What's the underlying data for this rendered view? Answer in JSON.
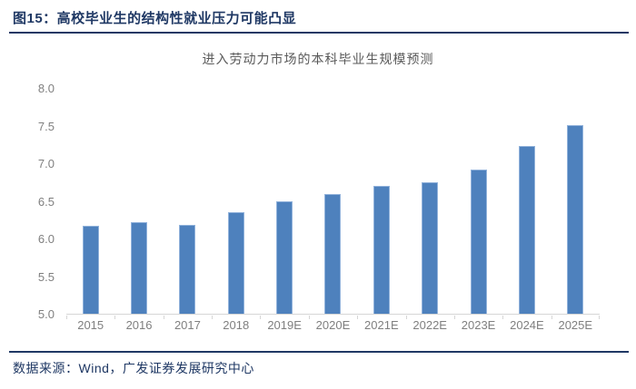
{
  "header": {
    "title": "图15：高校毕业生的结构性就业压力可能凸显"
  },
  "chart_data": {
    "type": "bar",
    "title": "进入劳动力市场的本科毕业生规模预测",
    "categories": [
      "2015",
      "2016",
      "2017",
      "2018",
      "2019E",
      "2020E",
      "2021E",
      "2022E",
      "2023E",
      "2024E",
      "2025E"
    ],
    "values": [
      6.17,
      6.22,
      6.19,
      6.35,
      6.5,
      6.6,
      6.71,
      6.75,
      6.92,
      7.24,
      7.52
    ],
    "xlabel": "",
    "ylabel": "",
    "ylim": [
      5.0,
      8.0
    ],
    "yticks": [
      5.0,
      5.5,
      6.0,
      6.5,
      7.0,
      7.5,
      8.0
    ],
    "ytick_labels": [
      "5.0",
      "5.5",
      "6.0",
      "6.5",
      "7.0",
      "7.5",
      "8.0"
    ],
    "grid": false,
    "legend": false,
    "bar_color": "#4E81BD"
  },
  "footer": {
    "source": "数据来源：Wind，广发证券发展研究中心"
  },
  "colors": {
    "accent_navy": "#1F3864",
    "bar_fill": "#4E81BD",
    "bar_edge": "#91B2DB",
    "axis_line": "#D6D6D6",
    "axis_text": "#7F7F7F",
    "title_gray": "#595959",
    "page_bg": "#FFFFFF"
  }
}
